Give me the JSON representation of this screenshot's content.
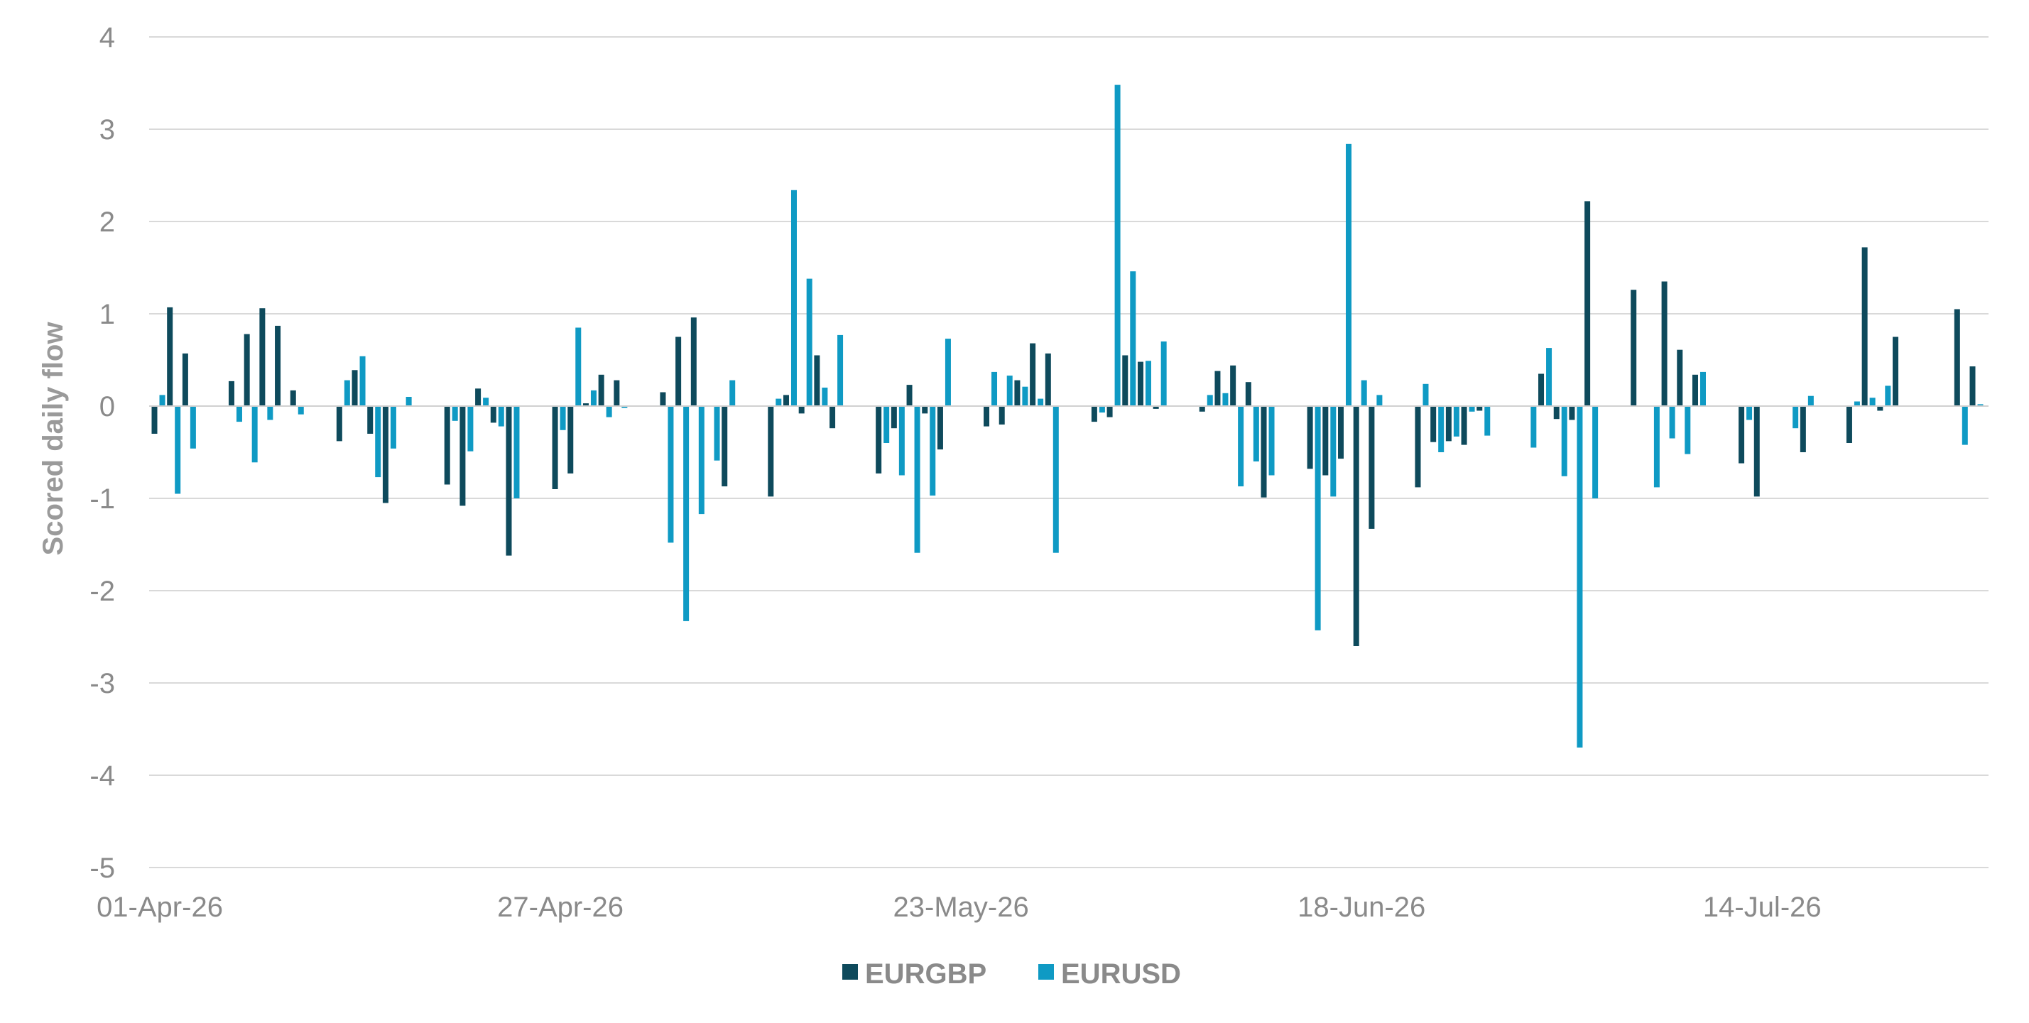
{
  "chart_data": {
    "type": "bar",
    "ylabel": "Scored daily flow",
    "xlabel": "",
    "ylim": [
      -5,
      4
    ],
    "yticks": [
      4,
      3,
      2,
      1,
      0,
      -1,
      -2,
      -3,
      -4,
      -5
    ],
    "grid": true,
    "legend_position": "bottom",
    "x_tick_labels": [
      "01-Apr-26",
      "27-Apr-26",
      "23-May-26",
      "18-Jun-26",
      "14-Jul-26"
    ],
    "x_tick_dates": [
      "2026-04-01",
      "2026-04-27",
      "2026-05-23",
      "2026-06-18",
      "2026-07-14"
    ],
    "x_range": [
      "2026-04-01",
      "2026-07-28"
    ],
    "colors": {
      "EURGBP": "#0e4a5c",
      "EURUSD": "#0f9ac4"
    },
    "series": [
      {
        "name": "EURGBP",
        "points": [
          [
            "2026-04-01",
            -0.3
          ],
          [
            "2026-04-02",
            1.07
          ],
          [
            "2026-04-03",
            0.57
          ],
          [
            "2026-04-06",
            0.27
          ],
          [
            "2026-04-07",
            0.78
          ],
          [
            "2026-04-08",
            1.06
          ],
          [
            "2026-04-09",
            0.87
          ],
          [
            "2026-04-10",
            0.17
          ],
          [
            "2026-04-13",
            -0.38
          ],
          [
            "2026-04-14",
            0.39
          ],
          [
            "2026-04-15",
            -0.3
          ],
          [
            "2026-04-16",
            -1.05
          ],
          [
            "2026-04-17",
            0.0
          ],
          [
            "2026-04-20",
            -0.85
          ],
          [
            "2026-04-21",
            -1.08
          ],
          [
            "2026-04-22",
            0.19
          ],
          [
            "2026-04-23",
            -0.18
          ],
          [
            "2026-04-24",
            -1.62
          ],
          [
            "2026-04-27",
            -0.9
          ],
          [
            "2026-04-28",
            -0.73
          ],
          [
            "2026-04-29",
            0.03
          ],
          [
            "2026-04-30",
            0.34
          ],
          [
            "2026-05-01",
            0.28
          ],
          [
            "2026-05-04",
            0.15
          ],
          [
            "2026-05-05",
            0.75
          ],
          [
            "2026-05-06",
            0.96
          ],
          [
            "2026-05-07",
            0.0
          ],
          [
            "2026-05-08",
            -0.87
          ],
          [
            "2026-05-11",
            -0.98
          ],
          [
            "2026-05-12",
            0.12
          ],
          [
            "2026-05-13",
            -0.08
          ],
          [
            "2026-05-14",
            0.55
          ],
          [
            "2026-05-15",
            -0.24
          ],
          [
            "2026-05-18",
            -0.73
          ],
          [
            "2026-05-19",
            -0.24
          ],
          [
            "2026-05-20",
            0.23
          ],
          [
            "2026-05-21",
            -0.08
          ],
          [
            "2026-05-22",
            -0.47
          ],
          [
            "2026-05-25",
            -0.22
          ],
          [
            "2026-05-26",
            -0.2
          ],
          [
            "2026-05-27",
            0.28
          ],
          [
            "2026-05-28",
            0.68
          ],
          [
            "2026-05-29",
            0.57
          ],
          [
            "2026-06-01",
            -0.17
          ],
          [
            "2026-06-02",
            -0.12
          ],
          [
            "2026-06-03",
            0.55
          ],
          [
            "2026-06-04",
            0.48
          ],
          [
            "2026-06-05",
            -0.03
          ],
          [
            "2026-06-08",
            -0.06
          ],
          [
            "2026-06-09",
            0.38
          ],
          [
            "2026-06-10",
            0.44
          ],
          [
            "2026-06-11",
            0.26
          ],
          [
            "2026-06-12",
            -0.99
          ],
          [
            "2026-06-15",
            -0.68
          ],
          [
            "2026-06-16",
            -0.75
          ],
          [
            "2026-06-17",
            -0.57
          ],
          [
            "2026-06-18",
            -2.6
          ],
          [
            "2026-06-19",
            -1.33
          ],
          [
            "2026-06-22",
            -0.88
          ],
          [
            "2026-06-23",
            -0.39
          ],
          [
            "2026-06-24",
            -0.38
          ],
          [
            "2026-06-25",
            -0.42
          ],
          [
            "2026-06-26",
            -0.05
          ],
          [
            "2026-06-29",
            0.0
          ],
          [
            "2026-06-30",
            0.35
          ],
          [
            "2026-07-01",
            -0.14
          ],
          [
            "2026-07-02",
            -0.15
          ],
          [
            "2026-07-03",
            2.22
          ],
          [
            "2026-07-06",
            1.26
          ],
          [
            "2026-07-07",
            0.0
          ],
          [
            "2026-07-08",
            1.35
          ],
          [
            "2026-07-09",
            0.61
          ],
          [
            "2026-07-10",
            0.34
          ],
          [
            "2026-07-13",
            -0.62
          ],
          [
            "2026-07-14",
            -0.98
          ],
          [
            "2026-07-15",
            0.0
          ],
          [
            "2026-07-16",
            0.0
          ],
          [
            "2026-07-17",
            -0.5
          ],
          [
            "2026-07-20",
            -0.4
          ],
          [
            "2026-07-21",
            1.72
          ],
          [
            "2026-07-22",
            -0.05
          ],
          [
            "2026-07-23",
            0.75
          ],
          [
            "2026-07-24",
            0.0
          ],
          [
            "2026-07-27",
            1.05
          ],
          [
            "2026-07-28",
            0.43
          ]
        ]
      },
      {
        "name": "EURUSD",
        "points": [
          [
            "2026-04-01",
            0.12
          ],
          [
            "2026-04-02",
            -0.95
          ],
          [
            "2026-04-03",
            -0.46
          ],
          [
            "2026-04-06",
            -0.17
          ],
          [
            "2026-04-07",
            -0.61
          ],
          [
            "2026-04-08",
            -0.15
          ],
          [
            "2026-04-09",
            0.0
          ],
          [
            "2026-04-10",
            -0.09
          ],
          [
            "2026-04-13",
            0.28
          ],
          [
            "2026-04-14",
            0.54
          ],
          [
            "2026-04-15",
            -0.77
          ],
          [
            "2026-04-16",
            -0.46
          ],
          [
            "2026-04-17",
            0.1
          ],
          [
            "2026-04-20",
            -0.16
          ],
          [
            "2026-04-21",
            -0.49
          ],
          [
            "2026-04-22",
            0.09
          ],
          [
            "2026-04-23",
            -0.22
          ],
          [
            "2026-04-24",
            -1.0
          ],
          [
            "2026-04-27",
            -0.26
          ],
          [
            "2026-04-28",
            0.85
          ],
          [
            "2026-04-29",
            0.17
          ],
          [
            "2026-04-30",
            -0.12
          ],
          [
            "2026-05-01",
            -0.02
          ],
          [
            "2026-05-04",
            -1.48
          ],
          [
            "2026-05-05",
            -2.33
          ],
          [
            "2026-05-06",
            -1.17
          ],
          [
            "2026-05-07",
            -0.59
          ],
          [
            "2026-05-08",
            0.28
          ],
          [
            "2026-05-11",
            0.08
          ],
          [
            "2026-05-12",
            2.34
          ],
          [
            "2026-05-13",
            1.38
          ],
          [
            "2026-05-14",
            0.2
          ],
          [
            "2026-05-15",
            0.77
          ],
          [
            "2026-05-18",
            -0.4
          ],
          [
            "2026-05-19",
            -0.75
          ],
          [
            "2026-05-20",
            -1.59
          ],
          [
            "2026-05-21",
            -0.97
          ],
          [
            "2026-05-22",
            0.73
          ],
          [
            "2026-05-25",
            0.37
          ],
          [
            "2026-05-26",
            0.33
          ],
          [
            "2026-05-27",
            0.21
          ],
          [
            "2026-05-28",
            0.08
          ],
          [
            "2026-05-29",
            -1.59
          ],
          [
            "2026-06-01",
            -0.07
          ],
          [
            "2026-06-02",
            3.48
          ],
          [
            "2026-06-03",
            1.46
          ],
          [
            "2026-06-04",
            0.49
          ],
          [
            "2026-06-05",
            0.7
          ],
          [
            "2026-06-08",
            0.12
          ],
          [
            "2026-06-09",
            0.14
          ],
          [
            "2026-06-10",
            -0.87
          ],
          [
            "2026-06-11",
            -0.6
          ],
          [
            "2026-06-12",
            -0.75
          ],
          [
            "2026-06-15",
            -2.43
          ],
          [
            "2026-06-16",
            -0.98
          ],
          [
            "2026-06-17",
            2.84
          ],
          [
            "2026-06-18",
            0.28
          ],
          [
            "2026-06-19",
            0.12
          ],
          [
            "2026-06-22",
            0.24
          ],
          [
            "2026-06-23",
            -0.5
          ],
          [
            "2026-06-24",
            -0.33
          ],
          [
            "2026-06-25",
            -0.06
          ],
          [
            "2026-06-26",
            -0.32
          ],
          [
            "2026-06-29",
            -0.45
          ],
          [
            "2026-06-30",
            0.63
          ],
          [
            "2026-07-01",
            -0.76
          ],
          [
            "2026-07-02",
            -3.7
          ],
          [
            "2026-07-03",
            -1.0
          ],
          [
            "2026-07-06",
            0.0
          ],
          [
            "2026-07-07",
            -0.88
          ],
          [
            "2026-07-08",
            -0.35
          ],
          [
            "2026-07-09",
            -0.52
          ],
          [
            "2026-07-10",
            0.37
          ],
          [
            "2026-07-13",
            -0.15
          ],
          [
            "2026-07-14",
            0.0
          ],
          [
            "2026-07-15",
            0.0
          ],
          [
            "2026-07-16",
            -0.24
          ],
          [
            "2026-07-17",
            0.11
          ],
          [
            "2026-07-20",
            0.05
          ],
          [
            "2026-07-21",
            0.09
          ],
          [
            "2026-07-22",
            0.22
          ],
          [
            "2026-07-23",
            0.0
          ],
          [
            "2026-07-24",
            0.0
          ],
          [
            "2026-07-27",
            -0.42
          ],
          [
            "2026-07-28",
            0.02
          ]
        ]
      }
    ]
  }
}
